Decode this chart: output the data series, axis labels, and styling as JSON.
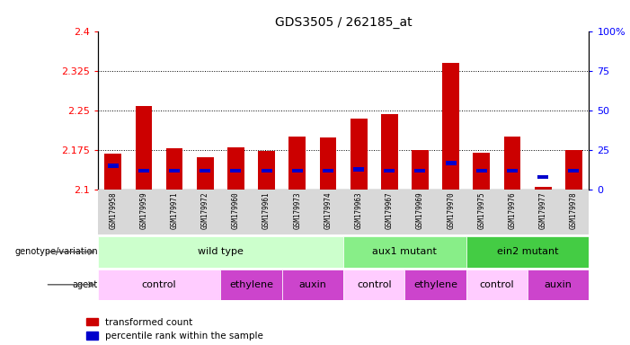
{
  "title": "GDS3505 / 262185_at",
  "samples": [
    "GSM179958",
    "GSM179959",
    "GSM179971",
    "GSM179972",
    "GSM179960",
    "GSM179961",
    "GSM179973",
    "GSM179974",
    "GSM179963",
    "GSM179967",
    "GSM179969",
    "GSM179970",
    "GSM179975",
    "GSM179976",
    "GSM179977",
    "GSM179978"
  ],
  "red_values": [
    2.168,
    2.258,
    2.178,
    2.162,
    2.18,
    2.173,
    2.2,
    2.198,
    2.235,
    2.243,
    2.175,
    2.34,
    2.17,
    2.2,
    2.105,
    2.175
  ],
  "blue_percentile": [
    15,
    12,
    12,
    12,
    12,
    12,
    12,
    12,
    13,
    12,
    12,
    17,
    12,
    12,
    8,
    12
  ],
  "ymin": 2.1,
  "ymax": 2.4,
  "y_ticks_left": [
    2.1,
    2.175,
    2.25,
    2.325,
    2.4
  ],
  "y_ticks_right": [
    0,
    25,
    50,
    75,
    100
  ],
  "dotted_lines": [
    2.175,
    2.25,
    2.325
  ],
  "genotype_groups": [
    {
      "label": "wild type",
      "start": 0,
      "end": 8,
      "color": "#ccffcc"
    },
    {
      "label": "aux1 mutant",
      "start": 8,
      "end": 12,
      "color": "#88ee88"
    },
    {
      "label": "ein2 mutant",
      "start": 12,
      "end": 16,
      "color": "#44cc44"
    }
  ],
  "agent_groups": [
    {
      "label": "control",
      "start": 0,
      "end": 4,
      "color": "#ffccff"
    },
    {
      "label": "ethylene",
      "start": 4,
      "end": 6,
      "color": "#cc44cc"
    },
    {
      "label": "auxin",
      "start": 6,
      "end": 8,
      "color": "#cc44cc"
    },
    {
      "label": "control",
      "start": 8,
      "end": 10,
      "color": "#ffccff"
    },
    {
      "label": "ethylene",
      "start": 10,
      "end": 12,
      "color": "#cc44cc"
    },
    {
      "label": "control",
      "start": 12,
      "end": 14,
      "color": "#ffccff"
    },
    {
      "label": "auxin",
      "start": 14,
      "end": 16,
      "color": "#cc44cc"
    }
  ],
  "bar_width": 0.55,
  "bar_color_red": "#cc0000",
  "bar_color_blue": "#0000cc",
  "plot_bg": "#ffffff"
}
